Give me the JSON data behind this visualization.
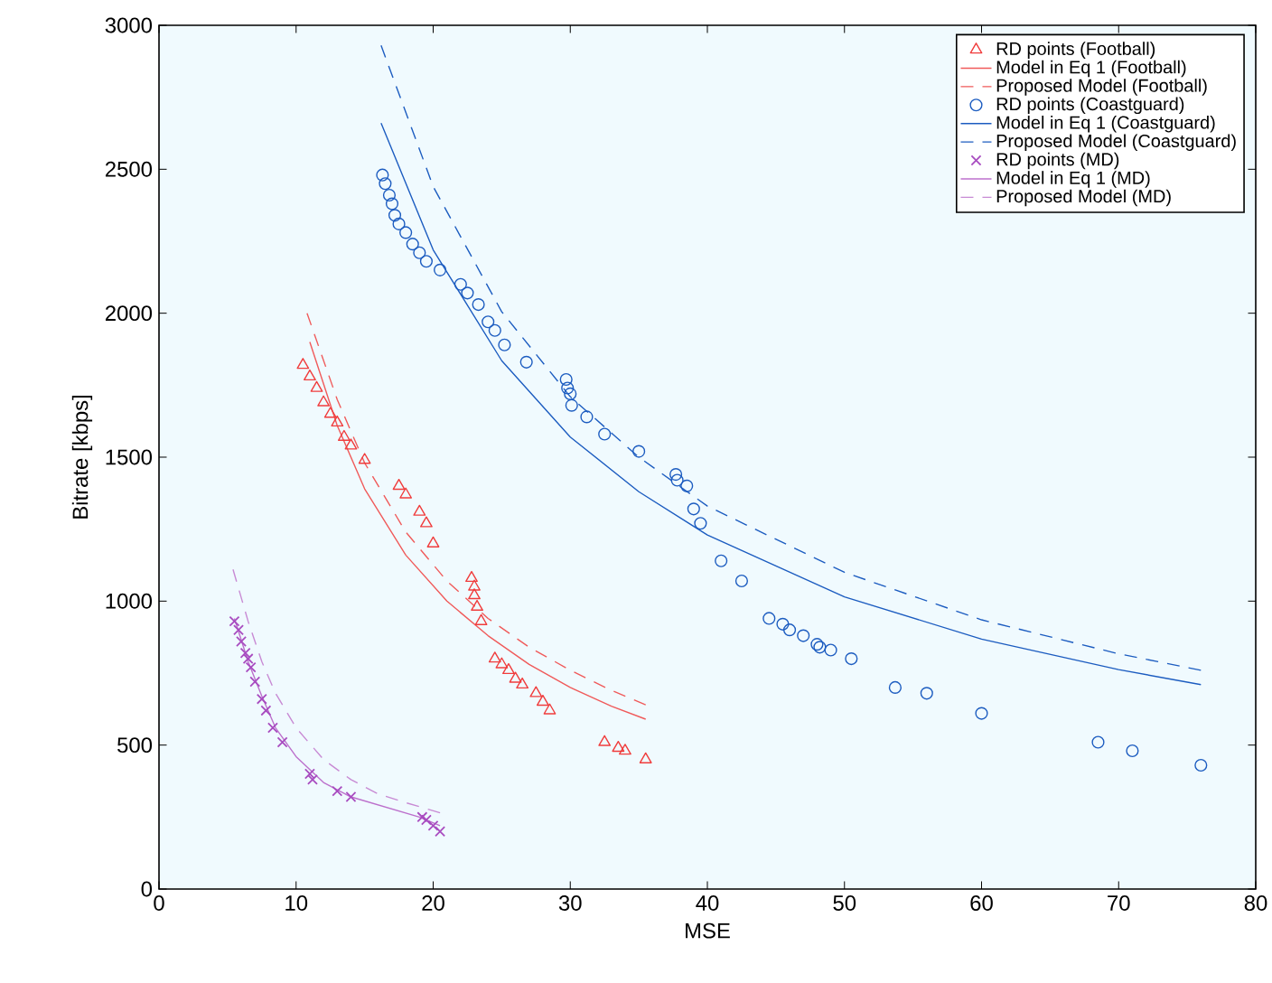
{
  "chart_data": {
    "type": "scatter",
    "xlabel": "MSE",
    "ylabel": "Bitrate [kbps]",
    "xlim": [
      0,
      80
    ],
    "ylim": [
      0,
      3000
    ],
    "xticks": [
      0,
      10,
      20,
      30,
      40,
      50,
      60,
      70,
      80
    ],
    "yticks": [
      0,
      500,
      1000,
      1500,
      2000,
      2500,
      3000
    ],
    "grid": false,
    "legend": "top right",
    "series": [
      {
        "name": "RD points (Football)",
        "type": "scatter",
        "marker": "triangle",
        "color": "#f03c3c",
        "x": [
          10.5,
          11,
          11.5,
          12,
          12.5,
          13,
          13.5,
          14,
          15,
          17.5,
          18,
          19,
          19.5,
          20,
          22.8,
          23,
          23,
          23.2,
          23.5,
          24.5,
          25,
          25.5,
          26,
          26.5,
          27.5,
          28,
          28.5,
          32.5,
          33.5,
          34,
          35.5
        ],
        "values": [
          1820,
          1780,
          1740,
          1690,
          1650,
          1620,
          1570,
          1540,
          1490,
          1400,
          1370,
          1310,
          1270,
          1200,
          1080,
          1050,
          1020,
          980,
          930,
          800,
          780,
          760,
          730,
          710,
          680,
          650,
          620,
          510,
          490,
          480,
          450
        ]
      },
      {
        "name": "Model in Eq 1 (Football)",
        "type": "line",
        "line_style": "solid",
        "marker": "none",
        "color": "#f05a5a",
        "x": [
          11,
          13,
          15,
          18,
          21,
          24,
          27,
          30,
          33,
          35.5
        ],
        "values": [
          1900,
          1610,
          1390,
          1160,
          1000,
          880,
          780,
          700,
          635,
          590
        ]
      },
      {
        "name": "Proposed Model (Football)",
        "type": "line",
        "line_style": "dashed",
        "marker": "none",
        "color": "#f05a5a",
        "x": [
          10.8,
          13,
          15,
          18,
          21,
          24,
          27,
          30,
          33,
          35.5
        ],
        "values": [
          2000,
          1700,
          1480,
          1240,
          1070,
          940,
          840,
          760,
          690,
          640
        ]
      },
      {
        "name": "RD points (Coastguard)",
        "type": "scatter",
        "marker": "circle",
        "color": "#1c5cc0",
        "x": [
          16.3,
          16.5,
          16.8,
          17,
          17.2,
          17.5,
          18,
          18.5,
          19,
          19.5,
          20.5,
          22,
          22.5,
          23.3,
          24,
          24.5,
          25.2,
          26.8,
          29.7,
          29.8,
          30,
          30.1,
          31.2,
          32.5,
          35,
          37.7,
          37.8,
          38.5,
          39,
          39.5,
          41,
          42.5,
          44.5,
          45.5,
          46,
          47,
          48,
          48.2,
          49,
          50.5,
          53.7,
          56,
          60,
          68.5,
          71,
          76
        ],
        "values": [
          2480,
          2450,
          2410,
          2380,
          2340,
          2310,
          2280,
          2240,
          2210,
          2180,
          2150,
          2100,
          2070,
          2030,
          1970,
          1940,
          1890,
          1830,
          1770,
          1740,
          1720,
          1680,
          1640,
          1580,
          1520,
          1440,
          1420,
          1400,
          1320,
          1270,
          1140,
          1070,
          940,
          920,
          900,
          880,
          850,
          840,
          830,
          800,
          700,
          680,
          610,
          510,
          480,
          430
        ]
      },
      {
        "name": "Model in Eq 1 (Coastguard)",
        "type": "line",
        "line_style": "solid",
        "marker": "none",
        "color": "#1c5cc0",
        "x": [
          16.2,
          20,
          25,
          30,
          35,
          40,
          50,
          60,
          70,
          76
        ],
        "values": [
          2660,
          2220,
          1835,
          1570,
          1380,
          1230,
          1015,
          868,
          762,
          710
        ]
      },
      {
        "name": "Proposed Model (Coastguard)",
        "type": "line",
        "line_style": "dashed",
        "marker": "none",
        "color": "#1c5cc0",
        "x": [
          16.2,
          20,
          25,
          30,
          35,
          40,
          50,
          60,
          70,
          76
        ],
        "values": [
          2930,
          2440,
          2005,
          1710,
          1500,
          1330,
          1100,
          935,
          817,
          760
        ]
      },
      {
        "name": "RD points (MD)",
        "type": "scatter",
        "marker": "cross",
        "color": "#a84cc0",
        "x": [
          5.5,
          5.8,
          6,
          6.3,
          6.5,
          6.7,
          7,
          7.5,
          7.8,
          8.3,
          9,
          11,
          11.2,
          13,
          14,
          19.2,
          19.5,
          20,
          20.5
        ],
        "values": [
          930,
          900,
          860,
          820,
          800,
          770,
          720,
          660,
          620,
          560,
          510,
          400,
          380,
          340,
          320,
          250,
          240,
          220,
          200
        ]
      },
      {
        "name": "Model in Eq 1 (MD)",
        "type": "line",
        "line_style": "solid",
        "marker": "none",
        "color": "#bc70cc",
        "x": [
          5.5,
          6.5,
          7.5,
          8.5,
          10,
          12,
          14,
          16.5,
          19,
          20.5
        ],
        "values": [
          940,
          790,
          670,
          560,
          460,
          370,
          320,
          285,
          250,
          220
        ]
      },
      {
        "name": "Proposed Model (MD)",
        "type": "line",
        "line_style": "dashed",
        "marker": "none",
        "color": "#c88ad4",
        "x": [
          5.4,
          6.5,
          7.5,
          8.5,
          10,
          12,
          14,
          16,
          18,
          20.5
        ],
        "values": [
          1110,
          930,
          790,
          680,
          560,
          450,
          380,
          330,
          300,
          265
        ]
      }
    ]
  }
}
